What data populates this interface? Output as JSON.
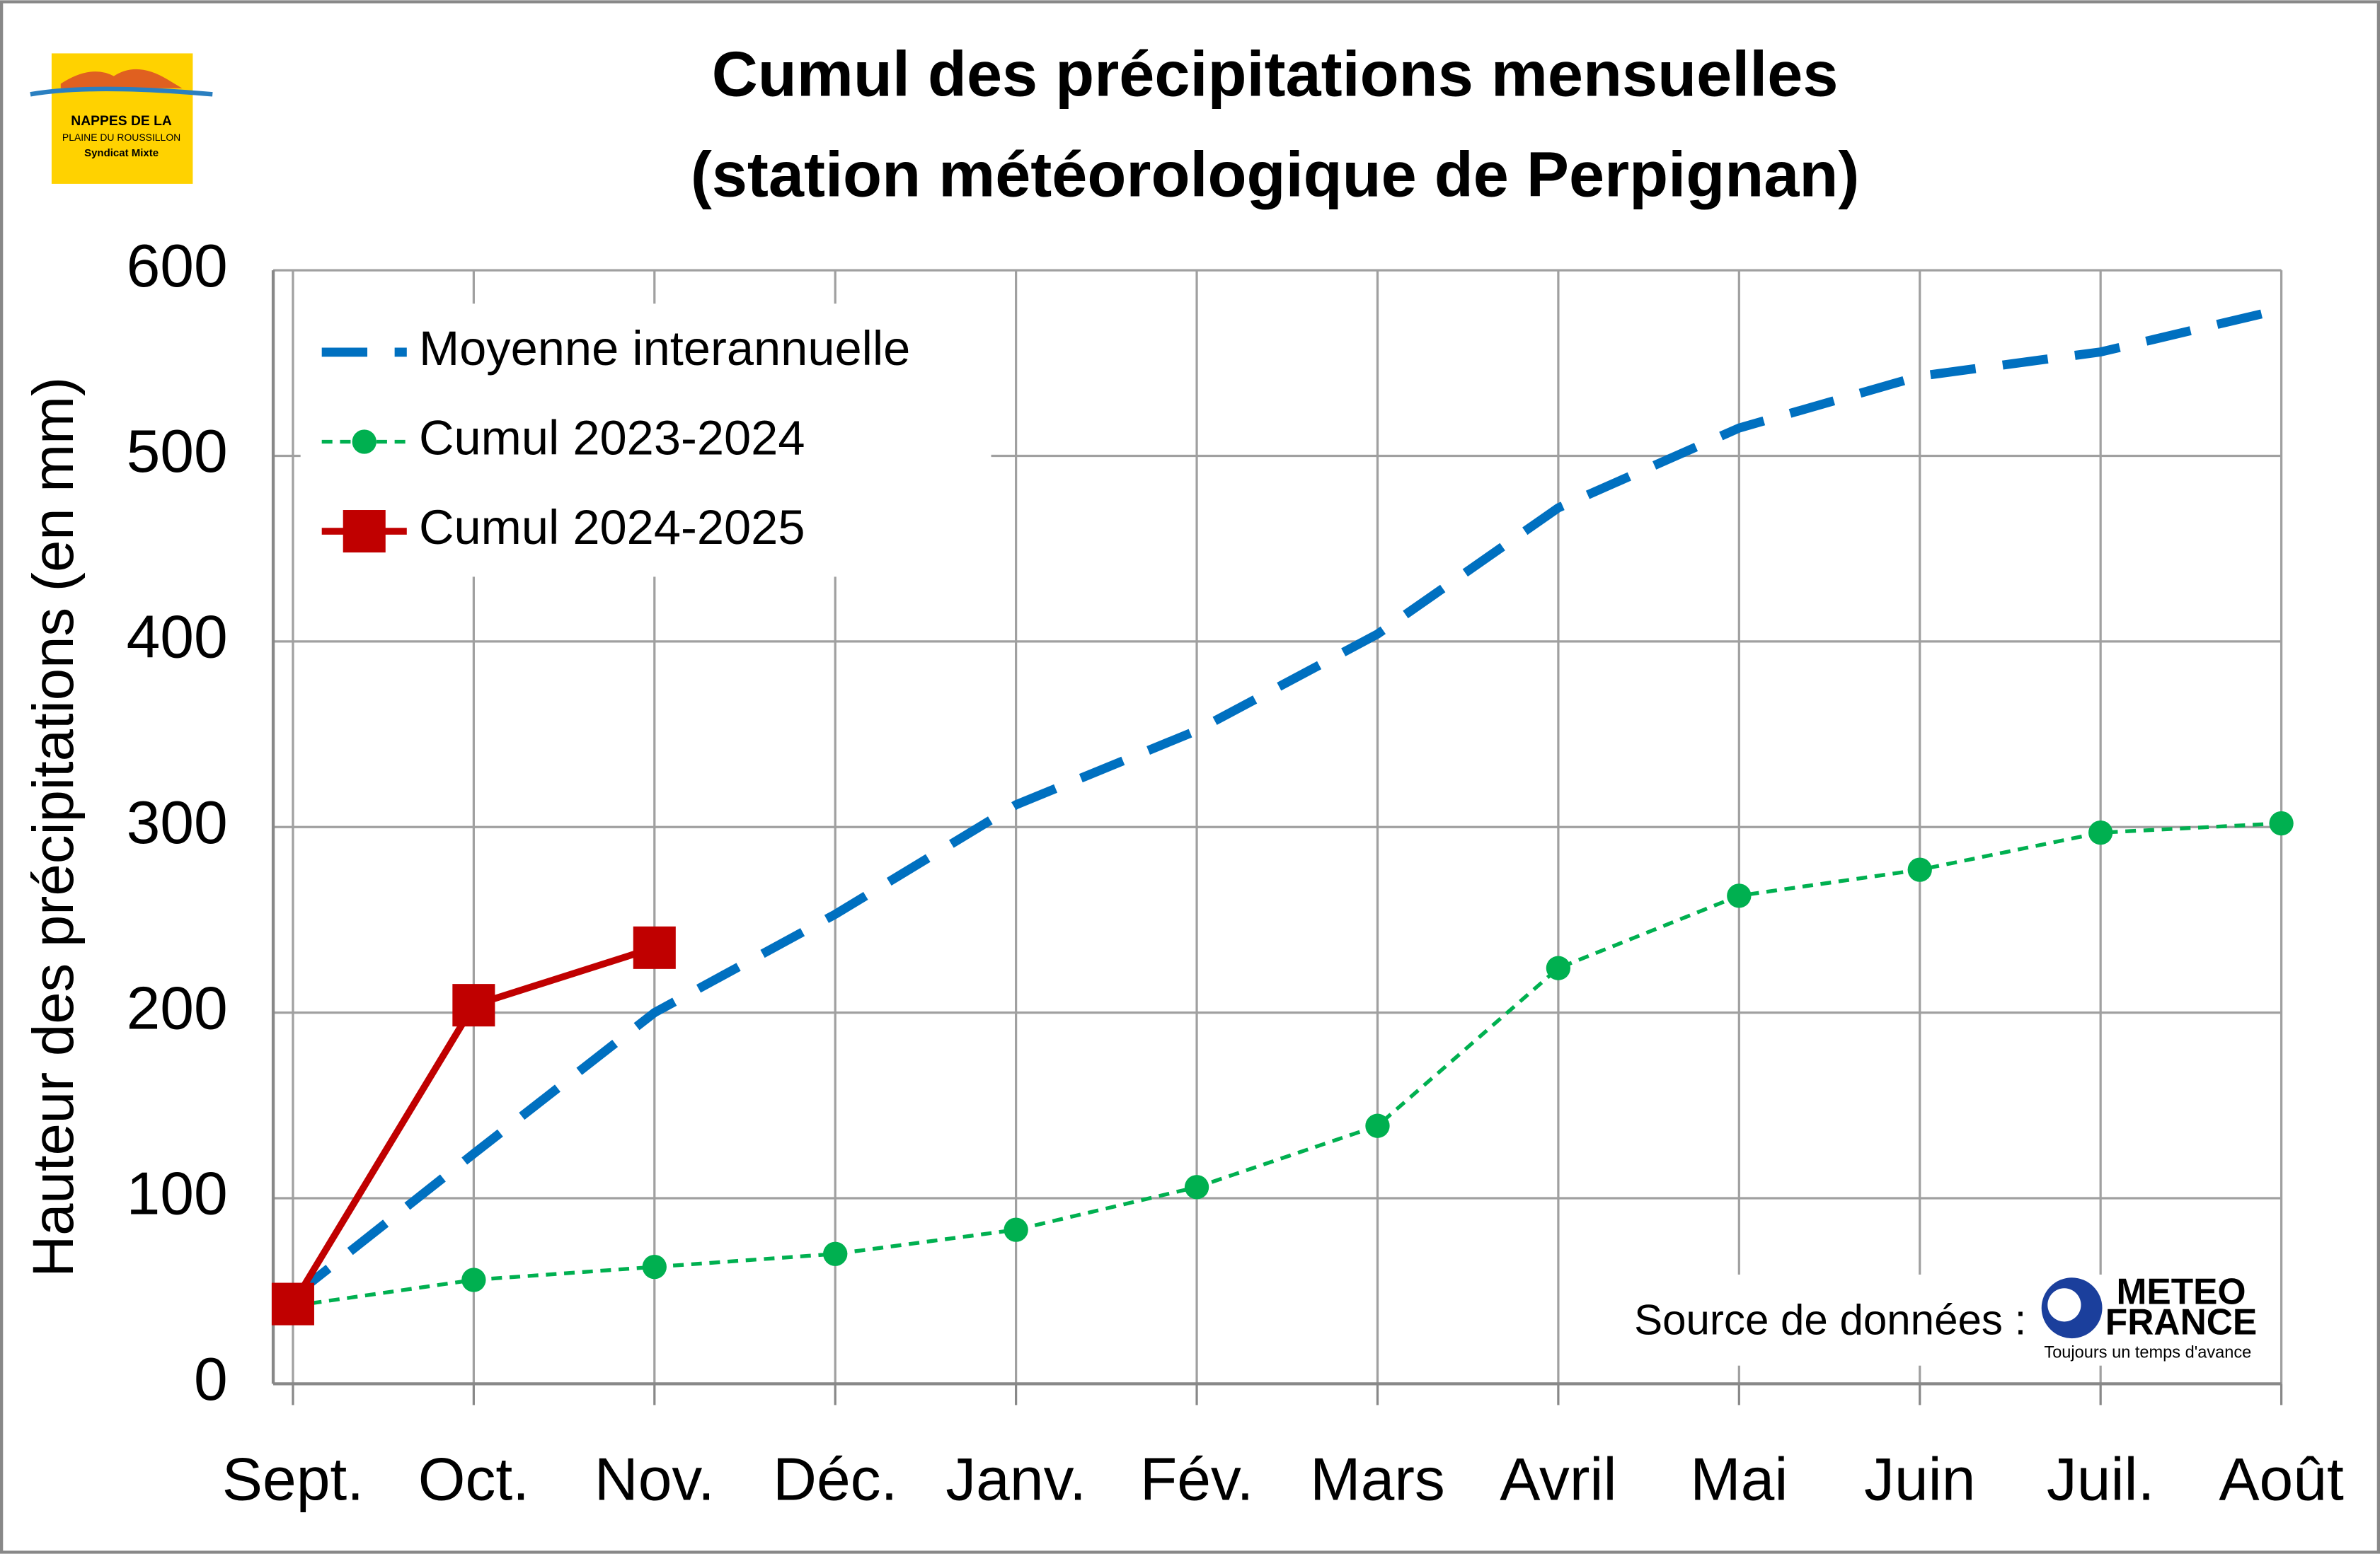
{
  "chart_data": {
    "type": "line",
    "title": "Cumul des précipitations mensuelles",
    "subtitle": "(station météorologique de Perpignan)",
    "y_label": "Hauteur des précipitations (en mm)",
    "categories": [
      "Sept.",
      "Oct.",
      "Nov.",
      "Déc.",
      "Janv.",
      "Fév.",
      "Mars",
      "Avril",
      "Mai",
      "Juin",
      "Juil.",
      "Août"
    ],
    "series": [
      {
        "name": "Moyenne interannuelle",
        "color": "#0070c0",
        "style": "dashed",
        "marker": "none",
        "values": [
          47,
          124,
          200,
          253,
          312,
          352,
          404,
          472,
          515,
          543,
          556,
          579
        ]
      },
      {
        "name": "Cumul 2023-2024",
        "color": "#00b050",
        "style": "dotted",
        "marker": "circle",
        "values": [
          42,
          56,
          63,
          70,
          83,
          106,
          139,
          224,
          263,
          277,
          297,
          302
        ]
      },
      {
        "name": "Cumul 2024-2025",
        "color": "#c00000",
        "style": "solid",
        "marker": "square",
        "values": [
          43,
          204,
          235,
          null,
          null,
          null,
          null,
          null,
          null,
          null,
          null,
          null
        ]
      }
    ],
    "ylim": [
      0,
      600
    ],
    "yticks": [
      0,
      100,
      200,
      300,
      400,
      500,
      600
    ],
    "grid": true,
    "legend": "upper left",
    "source": "Source de données :",
    "logo_left": {
      "line1": "NAPPES DE LA",
      "line2": "PLAINE DU ROUSSILLON",
      "line3": "Syndicat Mixte"
    },
    "logo_right": {
      "line1": "METEO",
      "line2": "FRANCE",
      "tagline": "Toujours un temps d'avance"
    }
  }
}
